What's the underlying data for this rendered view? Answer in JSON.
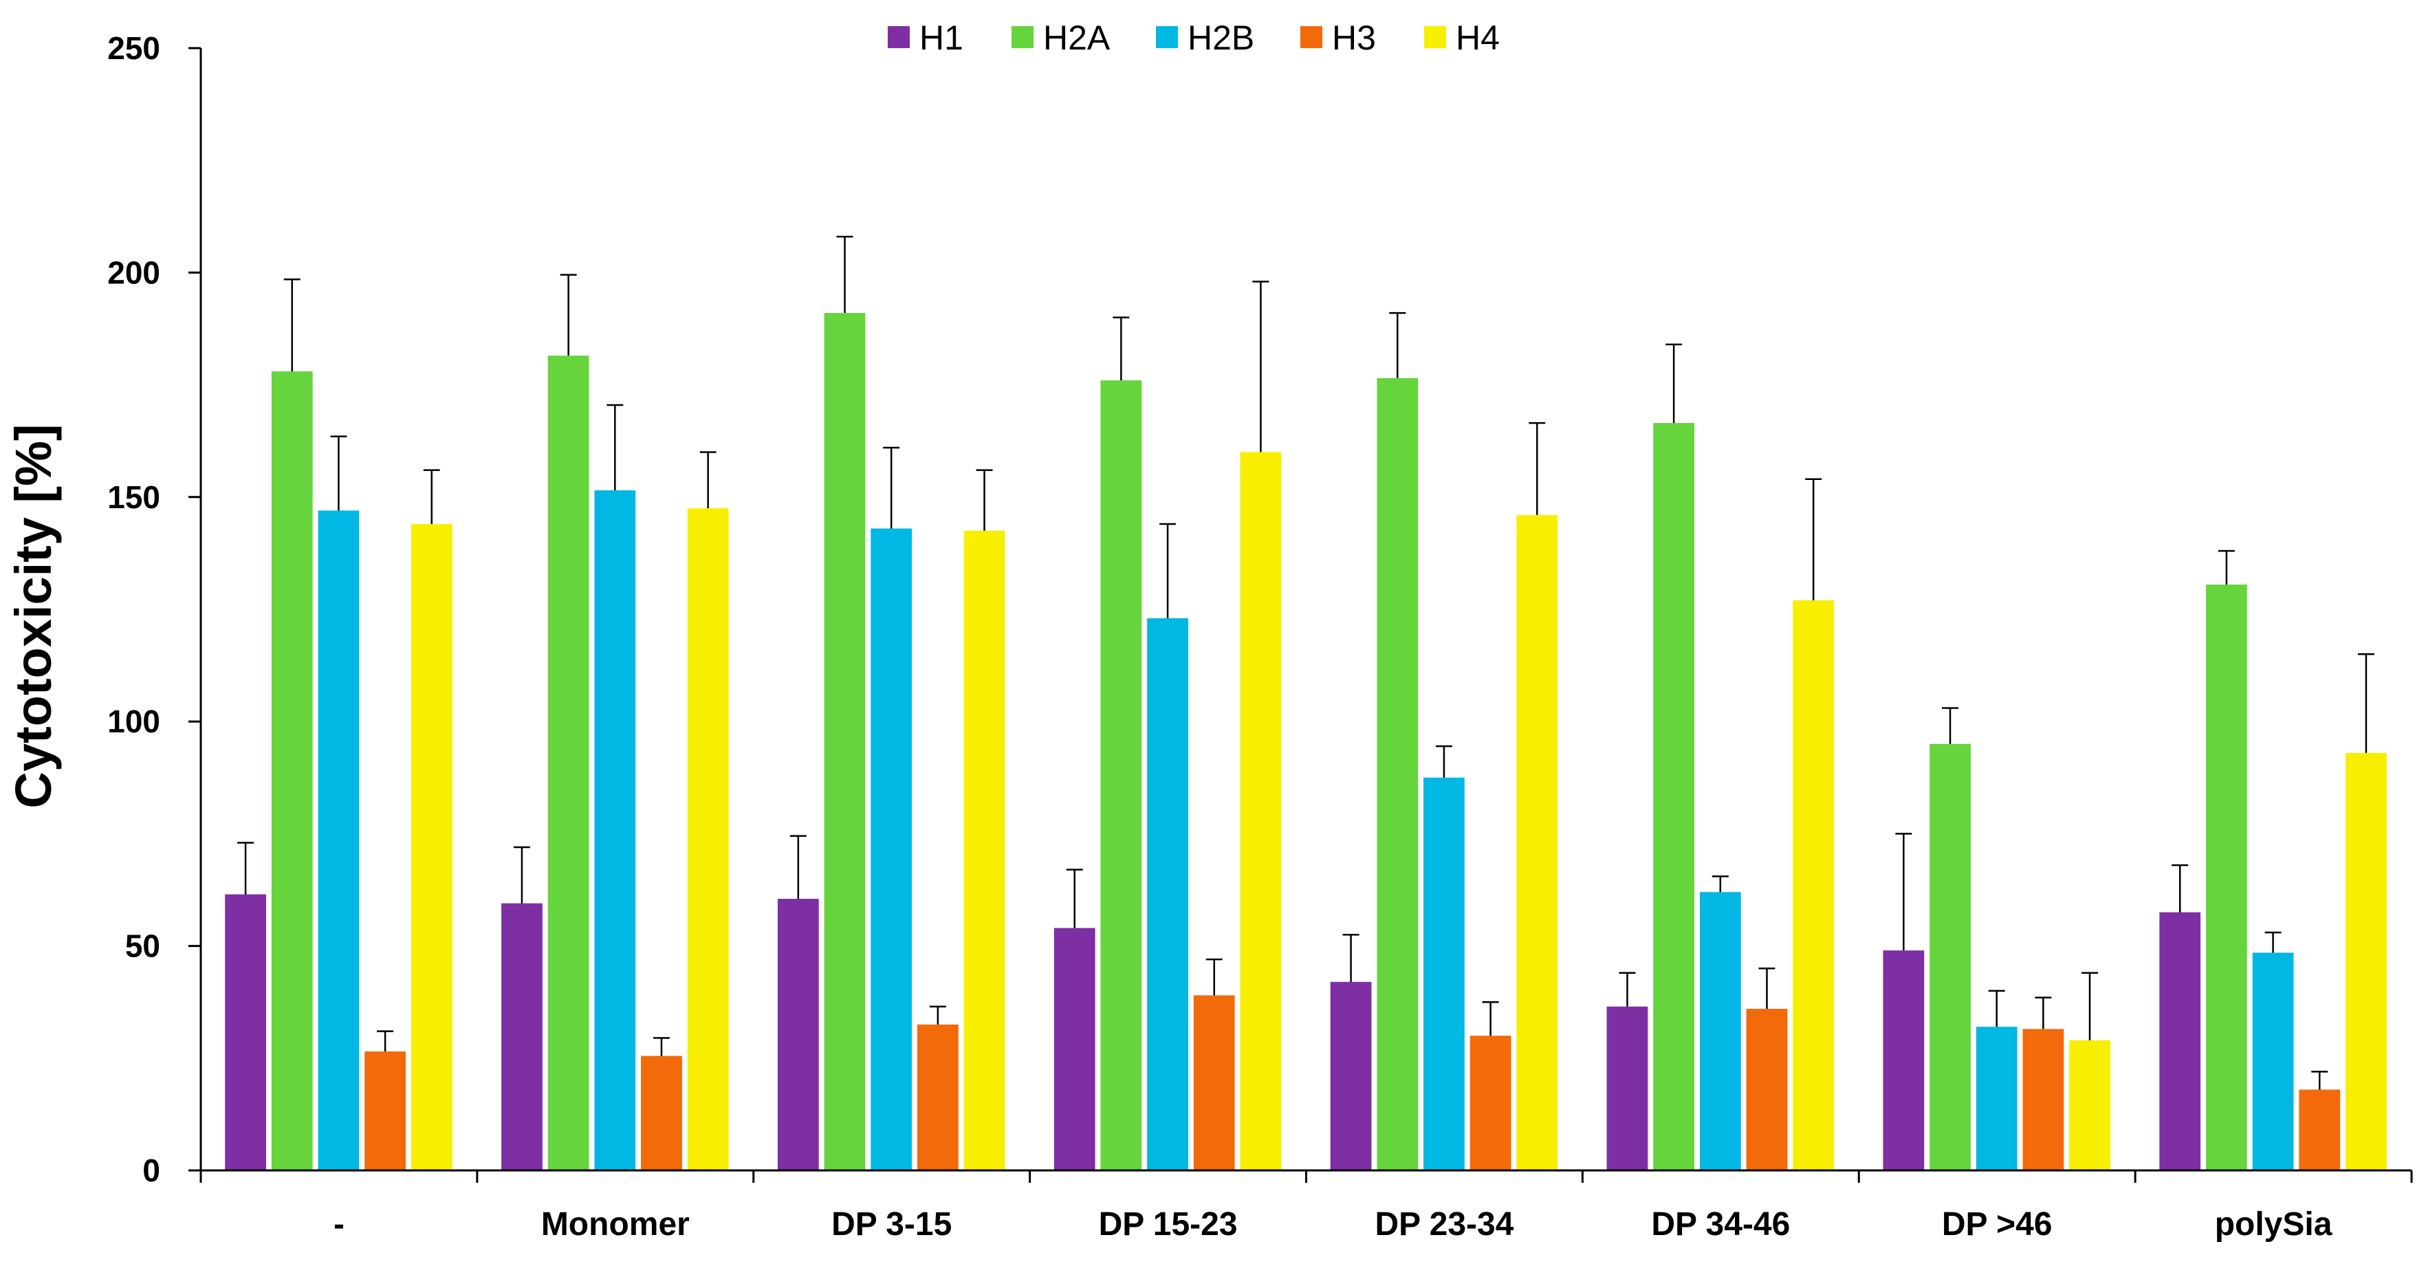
{
  "chart_data": {
    "type": "bar",
    "title": "",
    "xlabel": "",
    "ylabel": "Cytotoxicity [%]",
    "ylim": [
      0,
      250
    ],
    "yticks": [
      0,
      50,
      100,
      150,
      200,
      250
    ],
    "ytick_labels": [
      "0",
      "50",
      "100",
      "150",
      "200",
      "250"
    ],
    "grid": false,
    "legend_position": "top-center",
    "categories": [
      "-",
      "Monomer",
      "DP 3-15",
      "DP 15-23",
      "DP 23-34",
      "DP 34-46",
      "DP >46",
      "polySia"
    ],
    "series": [
      {
        "name": "H1",
        "color": "#7e2fa3",
        "values": [
          61.5,
          59.5,
          60.5,
          54,
          42,
          36.5,
          49,
          57.5
        ],
        "errors": [
          11.5,
          12.5,
          14,
          13,
          10.5,
          7.5,
          26,
          10.5
        ]
      },
      {
        "name": "H2A",
        "color": "#66d43c",
        "values": [
          178,
          181.5,
          191,
          176,
          176.5,
          166.5,
          95,
          130.5
        ],
        "errors": [
          20.5,
          18,
          17,
          14,
          14.5,
          17.5,
          8,
          7.5
        ]
      },
      {
        "name": "H2B",
        "color": "#00b8e3",
        "values": [
          147,
          151.5,
          143,
          123,
          87.5,
          62,
          32,
          48.5
        ],
        "errors": [
          16.5,
          19,
          18,
          21,
          7,
          3.5,
          8,
          4.5
        ]
      },
      {
        "name": "H3",
        "color": "#f26a0a",
        "values": [
          26.5,
          25.5,
          32.5,
          39,
          30,
          36,
          31.5,
          18
        ],
        "errors": [
          4.5,
          4,
          4,
          8,
          7.5,
          9,
          7,
          4
        ]
      },
      {
        "name": "H4",
        "color": "#f7ee00",
        "values": [
          144,
          147.5,
          142.5,
          160,
          146,
          127,
          29,
          93
        ],
        "errors": [
          12,
          12.5,
          13.5,
          38,
          20.5,
          27,
          15,
          22
        ]
      }
    ]
  }
}
